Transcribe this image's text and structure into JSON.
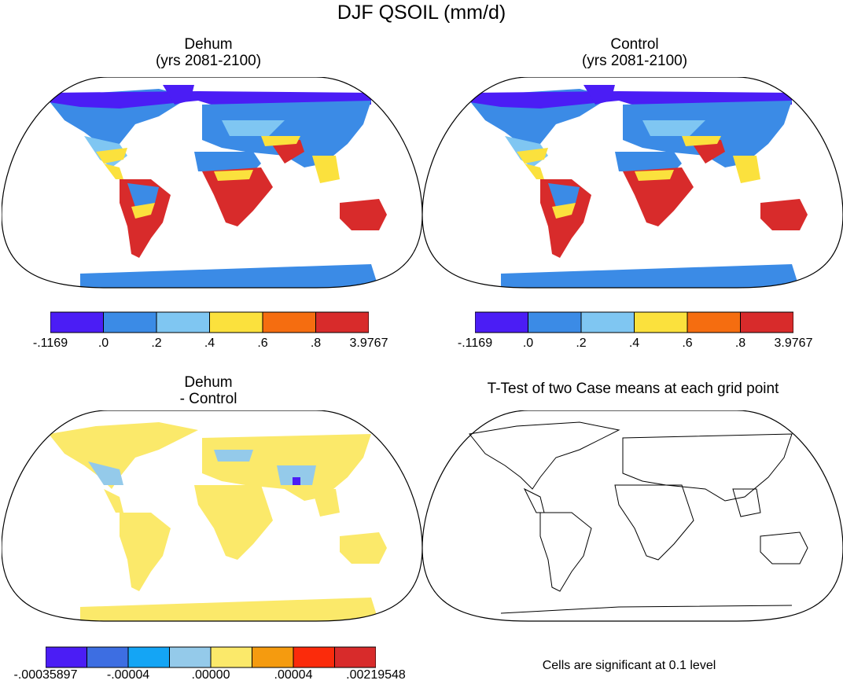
{
  "main_title": "DJF QSOIL (mm/d)",
  "panels": {
    "top_left": {
      "title_line1": "Dehum",
      "title_line2": "(yrs 2081-2100)"
    },
    "top_right": {
      "title_line1": "Control",
      "title_line2": "(yrs 2081-2100)"
    },
    "bottom_left": {
      "title_line1": "Dehum",
      "title_line2": "- Control"
    },
    "bottom_right": {
      "title": "T-Test of two Case means at each grid point"
    }
  },
  "colorbar_abs": {
    "colors": [
      "#4b1df5",
      "#3b8be6",
      "#7fc6f2",
      "#fbe13d",
      "#f56d10",
      "#d82b2b"
    ],
    "labels": [
      "-.1169",
      ".0",
      ".2",
      ".4",
      ".6",
      ".8",
      "3.9767"
    ]
  },
  "colorbar_diff": {
    "colors": [
      "#4b1df5",
      "#3d6ee2",
      "#14a5f5",
      "#94caea",
      "#fbe96a",
      "#f59b0f",
      "#fb2b0b",
      "#d82b2b"
    ],
    "labels": [
      "-.00035897",
      "-.00004",
      ".00000",
      ".00004",
      ".00219548"
    ]
  },
  "footnote": "Cells are significant at 0.1 level",
  "map_colors": {
    "arctic": "#4b1df5",
    "cool": "#3b8be6",
    "light": "#7fc6f2",
    "yellow": "#fbe13d",
    "orange": "#f56d10",
    "red": "#d82b2b",
    "diff_yellow": "#fbe96a",
    "diff_light": "#94caea"
  }
}
